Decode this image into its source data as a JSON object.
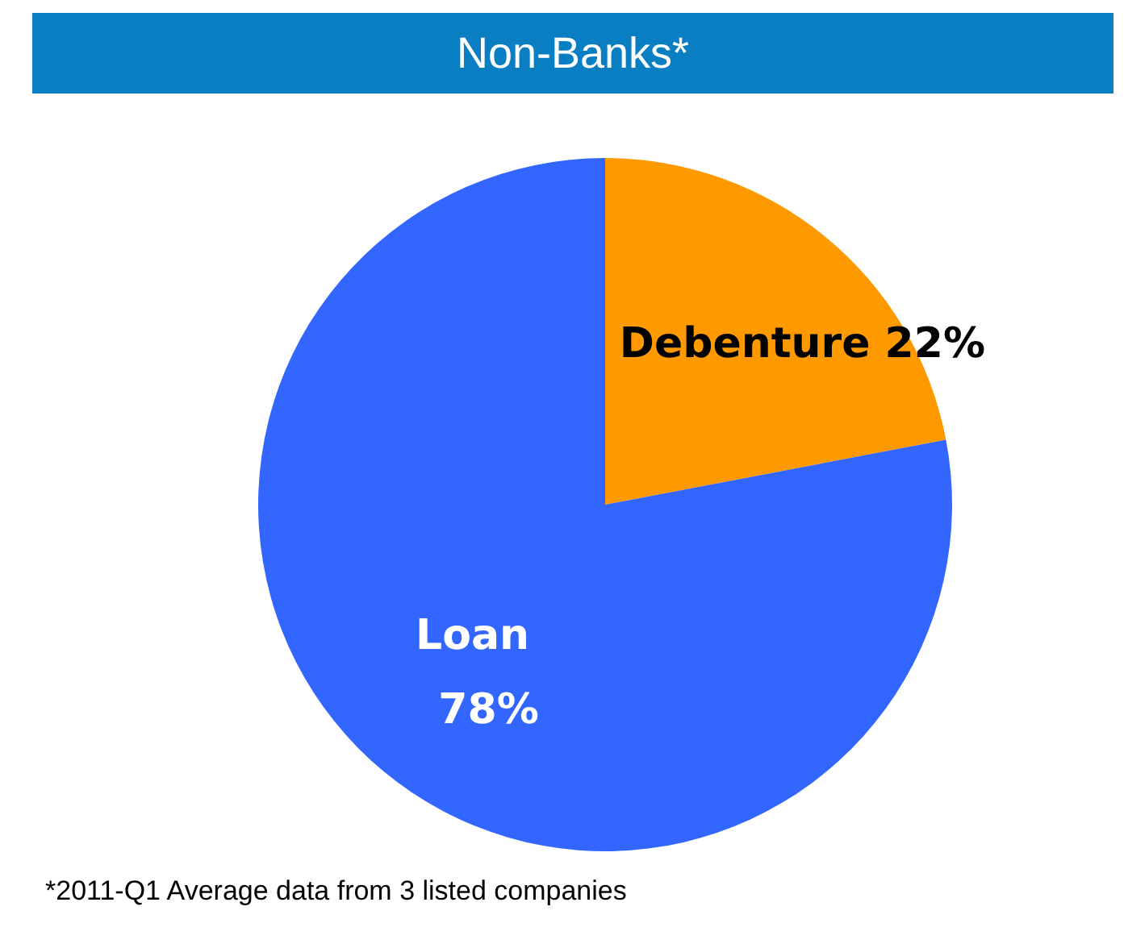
{
  "chart_data": {
    "type": "pie",
    "title": "Non-Banks*",
    "categories": [
      "Debenture",
      "Loan"
    ],
    "values": [
      22,
      78
    ],
    "colors": [
      "#ff9900",
      "#3366ff"
    ],
    "value_labels": [
      "22%",
      "78%"
    ],
    "annotations": [
      "*2011-Q1 Average data from 3 listed companies"
    ]
  }
}
